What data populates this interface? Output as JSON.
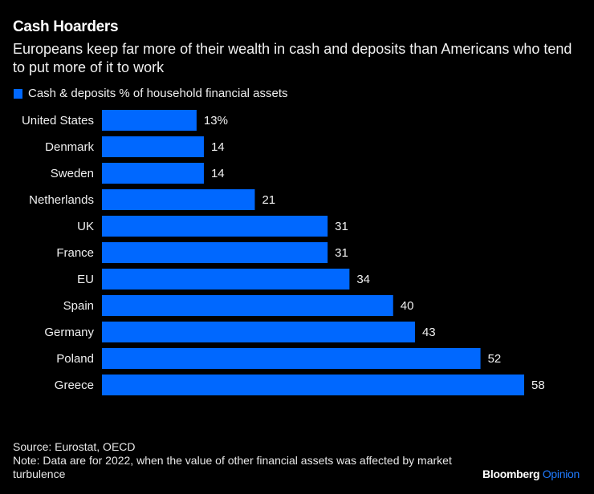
{
  "header": {
    "title": "Cash Hoarders",
    "subtitle": "Europeans keep far more of their wealth in cash and deposits than Americans who tend to put more of it to work"
  },
  "colors": {
    "background": "#000000",
    "bar": "#0068FF",
    "text": "#FFFFFF",
    "brand_accent": "#1F7BFF"
  },
  "chart_data": {
    "type": "bar",
    "orientation": "horizontal",
    "title": "Cash Hoarders",
    "xlabel": "",
    "ylabel": "",
    "legend": {
      "position": "top-left",
      "entries": [
        "Cash & deposits % of household financial assets"
      ]
    },
    "categories": [
      "United States",
      "Denmark",
      "Sweden",
      "Netherlands",
      "UK",
      "France",
      "EU",
      "Spain",
      "Germany",
      "Poland",
      "Greece"
    ],
    "series": [
      {
        "name": "Cash & deposits % of household financial assets",
        "values": [
          13,
          14,
          14,
          21,
          31,
          31,
          34,
          40,
          43,
          52,
          58
        ],
        "labels": [
          "13%",
          "14",
          "14",
          "21",
          "31",
          "31",
          "34",
          "40",
          "43",
          "52",
          "58"
        ]
      }
    ],
    "xlim": [
      0,
      58
    ],
    "grid": false
  },
  "footer": {
    "source": "Source: Eurostat, OECD",
    "note": "Note: Data are for 2022, when the value of other financial assets was affected by market turbulence",
    "brand_name": "Bloomberg",
    "brand_suffix": "Opinion"
  }
}
